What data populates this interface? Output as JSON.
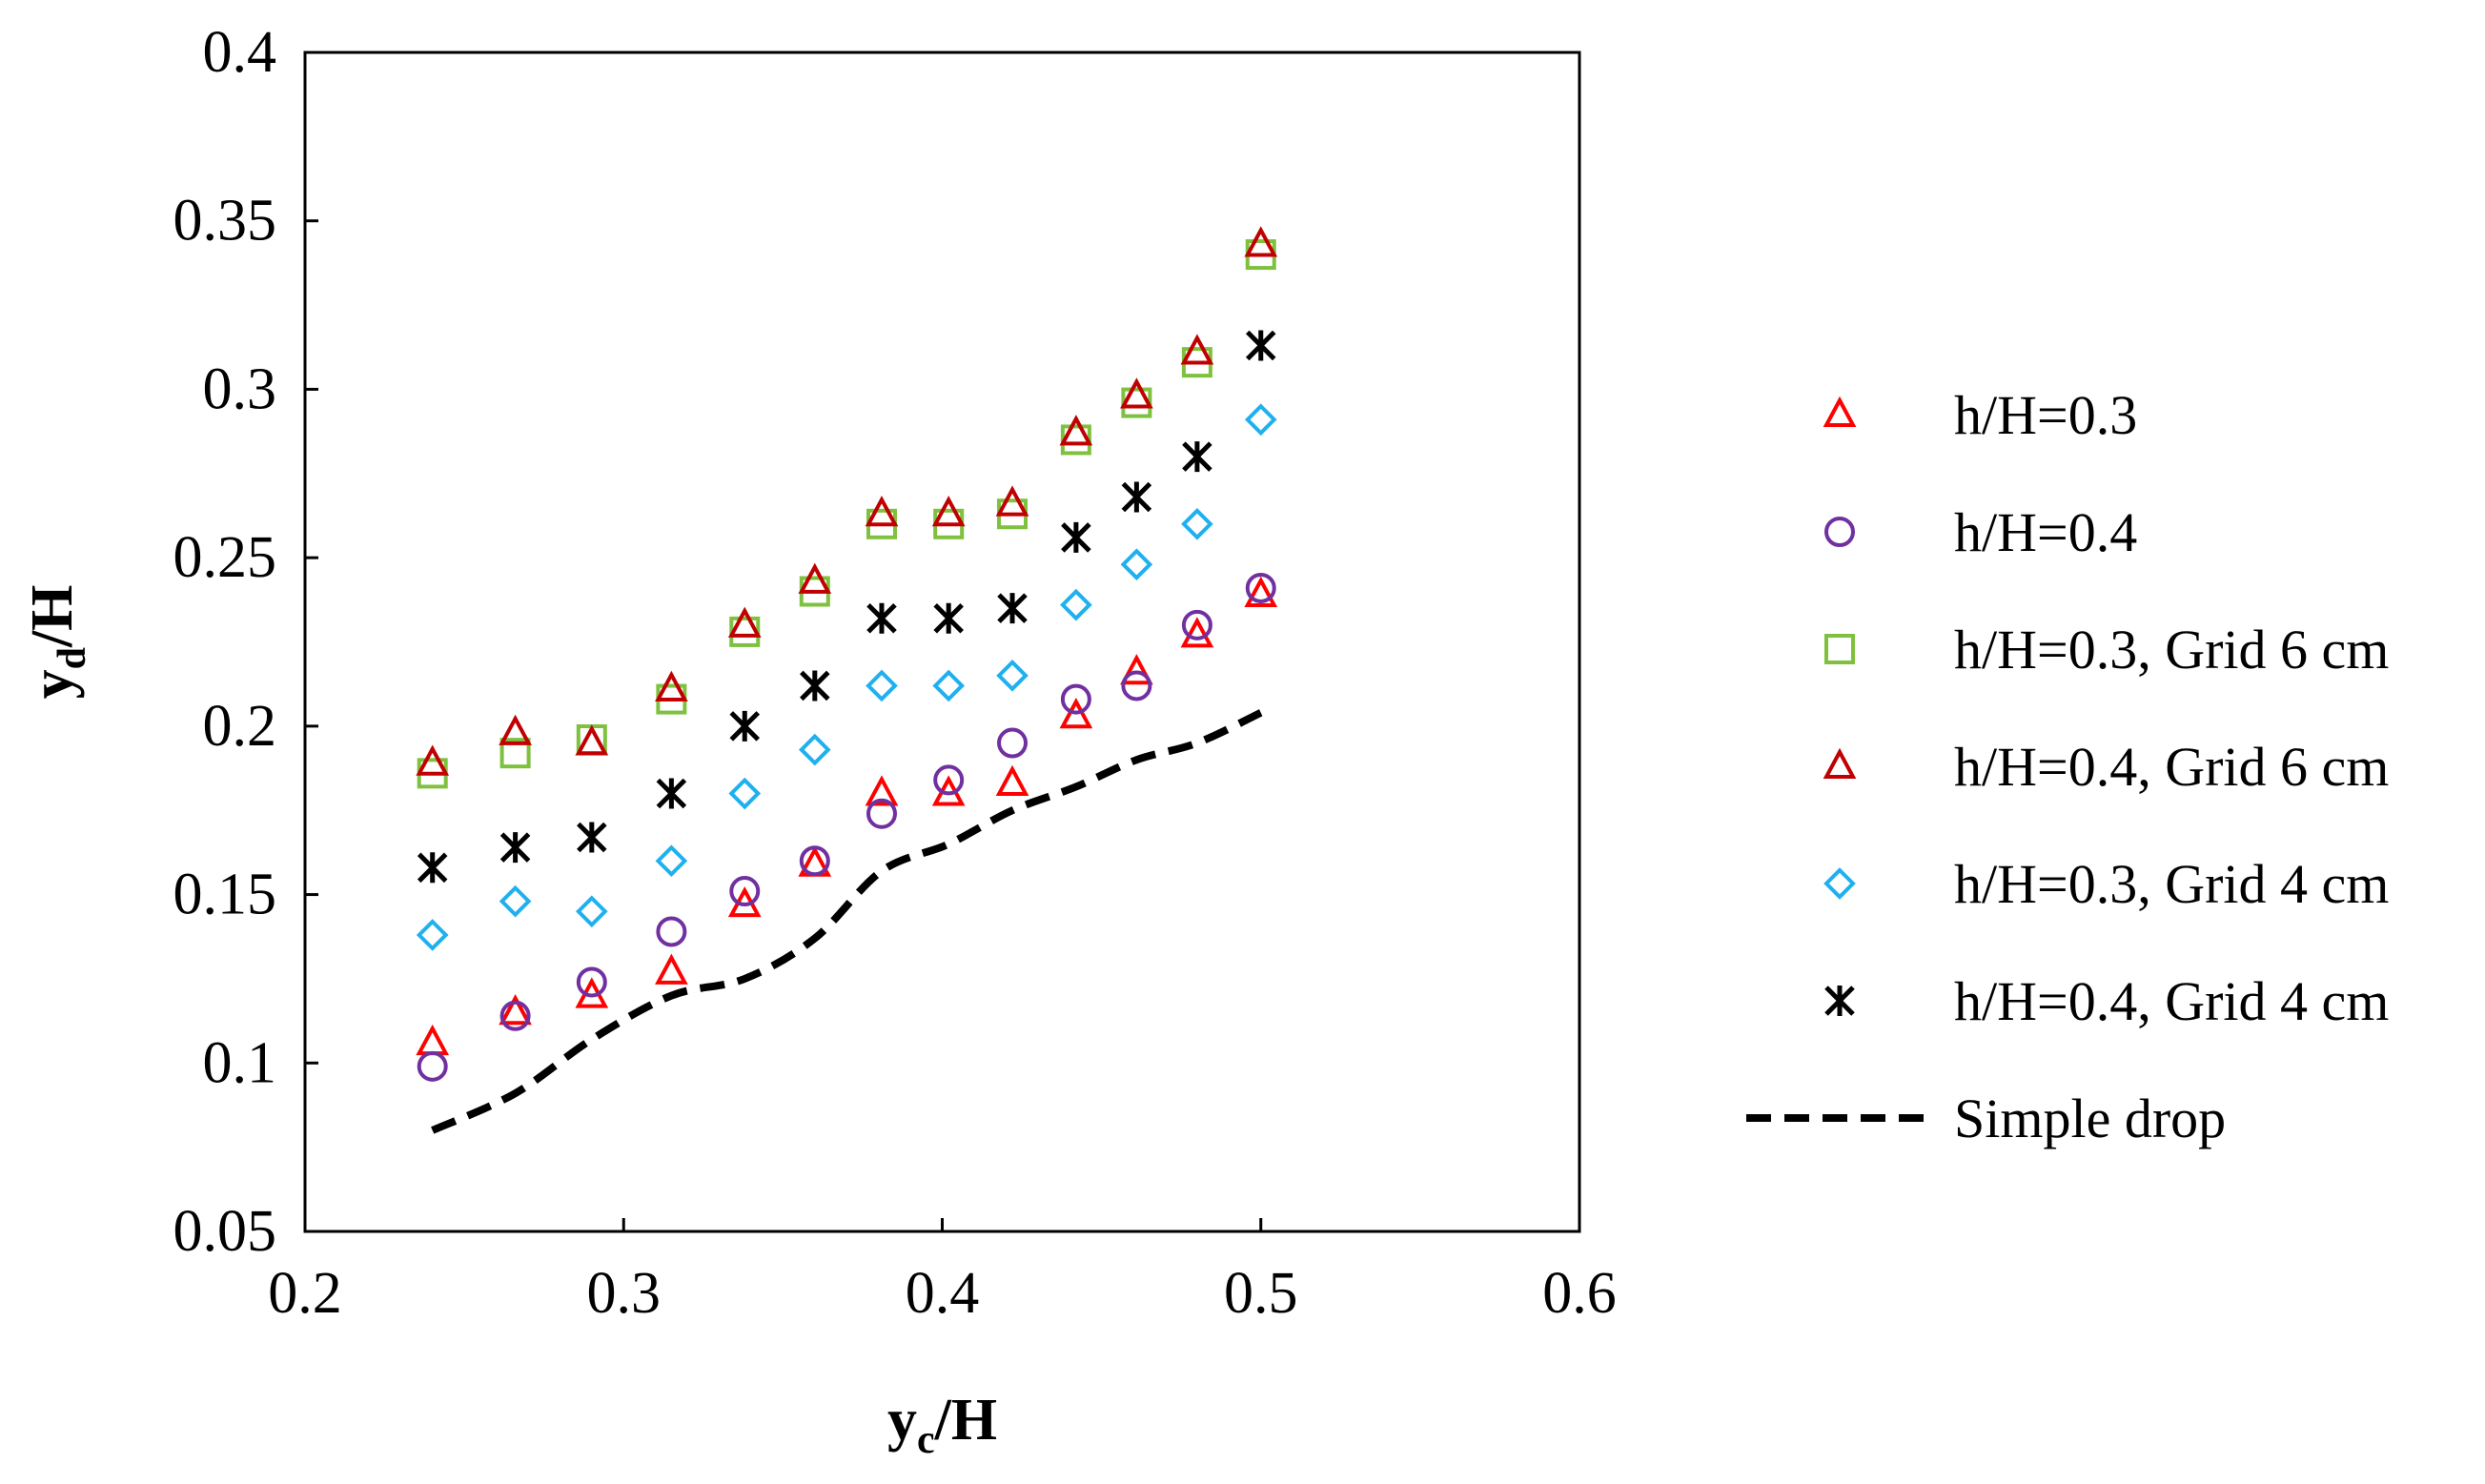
{
  "chart_data": {
    "type": "scatter",
    "title": "",
    "xlabel": {
      "main": "y",
      "sub": "c",
      "rest": "/H"
    },
    "ylabel": {
      "main": "y",
      "sub": "d",
      "rest": "/H"
    },
    "xlim": [
      0.2,
      0.6
    ],
    "ylim": [
      0.05,
      0.4
    ],
    "x_ticks": [
      0.2,
      0.3,
      0.4,
      0.5,
      0.6
    ],
    "x_tick_labels": [
      "0.2",
      "0.3",
      "0.4",
      "0.5",
      "0.6"
    ],
    "y_ticks": [
      0.05,
      0.1,
      0.15,
      0.2,
      0.25,
      0.3,
      0.35,
      0.4
    ],
    "y_tick_labels": [
      "0.05",
      "0.1",
      "0.15",
      "0.2",
      "0.25",
      "0.3",
      "0.35",
      "0.4"
    ],
    "grid": false,
    "legend_position": "right",
    "x": [
      0.24,
      0.266,
      0.29,
      0.315,
      0.338,
      0.36,
      0.381,
      0.402,
      0.422,
      0.442,
      0.461,
      0.48,
      0.5
    ],
    "series": [
      {
        "name": "h/H=0.3",
        "marker": "triangle",
        "color": "#ff0000",
        "values": [
          0.106,
          0.115,
          0.12,
          0.127,
          0.147,
          0.159,
          0.18,
          0.18,
          0.183,
          0.203,
          0.216,
          0.227,
          0.239
        ]
      },
      {
        "name": "h/H=0.4",
        "marker": "circle",
        "color": "#7030a0",
        "values": [
          0.099,
          0.114,
          0.124,
          0.139,
          0.151,
          0.16,
          0.174,
          0.184,
          0.195,
          0.208,
          0.212,
          0.23,
          0.241
        ]
      },
      {
        "name": "h/H=0.3, Grid 6 cm",
        "marker": "square",
        "color": "#7ec13e",
        "values": [
          0.186,
          0.192,
          0.196,
          0.208,
          0.228,
          0.24,
          0.26,
          0.26,
          0.263,
          0.285,
          0.296,
          0.308,
          0.34
        ]
      },
      {
        "name": "h/H=0.4, Grid 6 cm",
        "marker": "triangle",
        "color": "#c00000",
        "values": [
          0.189,
          0.198,
          0.195,
          0.211,
          0.23,
          0.243,
          0.263,
          0.263,
          0.266,
          0.287,
          0.298,
          0.311,
          0.343
        ]
      },
      {
        "name": "h/H=0.3, Grid 4 cm",
        "marker": "diamond",
        "color": "#1fb0f0",
        "values": [
          0.138,
          0.148,
          0.145,
          0.16,
          0.18,
          0.193,
          0.212,
          0.212,
          0.215,
          0.236,
          0.248,
          0.26,
          0.291
        ]
      },
      {
        "name": "h/H=0.4, Grid 4 cm",
        "marker": "star",
        "color": "#000000",
        "values": [
          0.158,
          0.164,
          0.167,
          0.18,
          0.2,
          0.212,
          0.232,
          0.232,
          0.235,
          0.256,
          0.268,
          0.28,
          0.313
        ]
      },
      {
        "name": "Simple drop",
        "marker": "dashed-line",
        "color": "#000000",
        "x": [
          0.24,
          0.266,
          0.29,
          0.315,
          0.338,
          0.36,
          0.381,
          0.402,
          0.422,
          0.442,
          0.461,
          0.48,
          0.5
        ],
        "values": [
          0.08,
          0.091,
          0.107,
          0.12,
          0.125,
          0.137,
          0.157,
          0.165,
          0.175,
          0.182,
          0.19,
          0.195,
          0.204
        ]
      }
    ]
  }
}
